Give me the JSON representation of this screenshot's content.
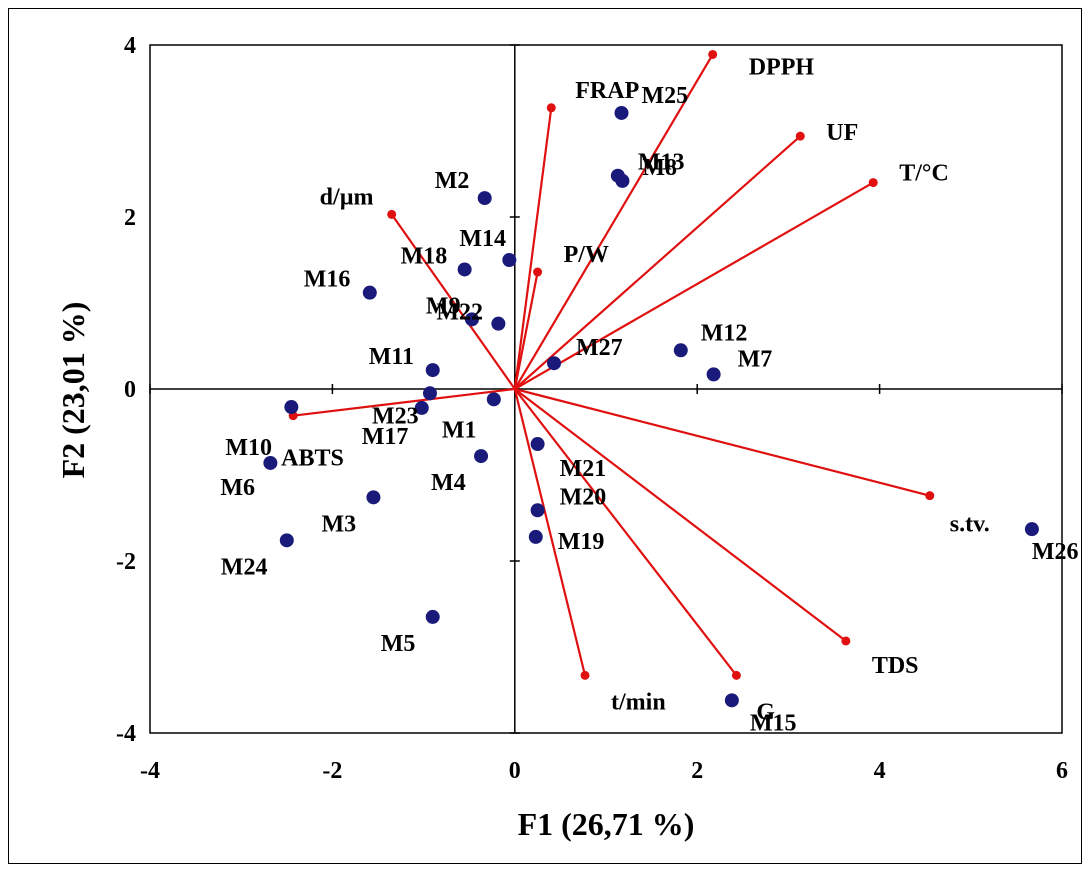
{
  "chart_data": {
    "type": "scatter",
    "subtype": "pca-biplot",
    "title": "",
    "xlabel": "F1 (26,71 %)",
    "ylabel": "F2 (23,01 %)",
    "xlim": [
      -4,
      6
    ],
    "ylim": [
      -4,
      4
    ],
    "xticks": [
      -4,
      -2,
      0,
      2,
      4,
      6
    ],
    "yticks": [
      -4,
      -2,
      0,
      2,
      4
    ],
    "grid": false,
    "colors": {
      "observations": "#1a1a7a",
      "variables": "#e01010",
      "axes": "#000000"
    },
    "observations": [
      {
        "name": "M1",
        "x": -0.23,
        "y": -0.12
      },
      {
        "name": "M2",
        "x": -0.33,
        "y": 2.22
      },
      {
        "name": "M3",
        "x": -1.55,
        "y": -1.26
      },
      {
        "name": "M4",
        "x": -0.37,
        "y": -0.78
      },
      {
        "name": "M5",
        "x": -0.9,
        "y": -2.65
      },
      {
        "name": "M6",
        "x": -2.68,
        "y": -0.86
      },
      {
        "name": "M7",
        "x": 2.18,
        "y": 0.17
      },
      {
        "name": "M8",
        "x": 1.18,
        "y": 2.42
      },
      {
        "name": "M9",
        "x": -0.47,
        "y": 0.81
      },
      {
        "name": "M10",
        "x": -2.45,
        "y": -0.21
      },
      {
        "name": "M11",
        "x": -0.9,
        "y": 0.22
      },
      {
        "name": "M12",
        "x": 1.82,
        "y": 0.45
      },
      {
        "name": "M13",
        "x": 1.13,
        "y": 2.48
      },
      {
        "name": "M14",
        "x": -0.06,
        "y": 1.5
      },
      {
        "name": "M15",
        "x": 2.38,
        "y": -3.62
      },
      {
        "name": "M16",
        "x": -1.59,
        "y": 1.12
      },
      {
        "name": "M17",
        "x": -1.02,
        "y": -0.22
      },
      {
        "name": "M18",
        "x": -0.55,
        "y": 1.39
      },
      {
        "name": "M19",
        "x": 0.23,
        "y": -1.72
      },
      {
        "name": "M20",
        "x": 0.25,
        "y": -1.41
      },
      {
        "name": "M21",
        "x": 0.25,
        "y": -0.64
      },
      {
        "name": "M22",
        "x": -0.18,
        "y": 0.76
      },
      {
        "name": "M23",
        "x": -0.93,
        "y": -0.05
      },
      {
        "name": "M24",
        "x": -2.5,
        "y": -1.76
      },
      {
        "name": "M25",
        "x": 1.17,
        "y": 3.21
      },
      {
        "name": "M26",
        "x": 5.67,
        "y": -1.63
      },
      {
        "name": "M27",
        "x": 0.43,
        "y": 0.3
      }
    ],
    "variables": [
      {
        "name": "DPPH",
        "x": 2.17,
        "y": 3.89
      },
      {
        "name": "FRAP",
        "x": 0.4,
        "y": 3.27
      },
      {
        "name": "UF",
        "x": 3.13,
        "y": 2.94
      },
      {
        "name": "T/°C",
        "x": 3.93,
        "y": 2.4
      },
      {
        "name": "d/µm",
        "x": -1.35,
        "y": 2.03
      },
      {
        "name": "P/W",
        "x": 0.25,
        "y": 1.36
      },
      {
        "name": "ABTS",
        "x": -2.43,
        "y": -0.31
      },
      {
        "name": "s.tv.",
        "x": 4.55,
        "y": -1.24
      },
      {
        "name": "TDS",
        "x": 3.63,
        "y": -2.93
      },
      {
        "name": "G",
        "x": 2.43,
        "y": -3.33
      },
      {
        "name": "t/min",
        "x": 0.77,
        "y": -3.33
      }
    ]
  }
}
